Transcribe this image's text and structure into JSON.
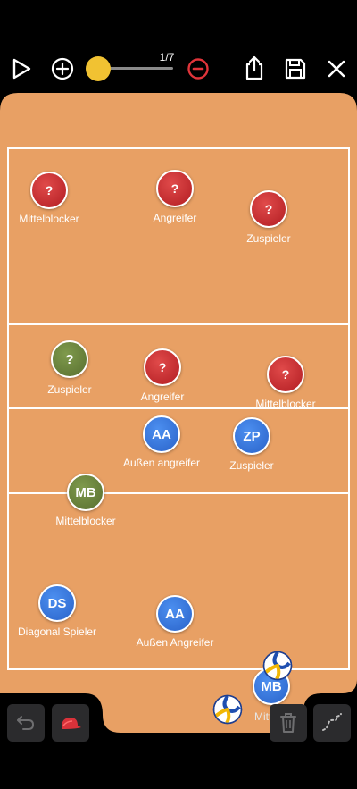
{
  "toolbar": {
    "frame_counter": "1/7",
    "slider_value": 0.17,
    "icons": {
      "play": "play-icon",
      "add": "plus-circle-icon",
      "remove": "minus-circle-icon",
      "share": "share-icon",
      "save": "floppy-disk-icon",
      "close": "close-icon"
    },
    "accent_yellow": "#f1c232",
    "remove_red": "#e0343a"
  },
  "court": {
    "color": "#e8a064",
    "line_color": "#ffffff"
  },
  "players": [
    {
      "badge": "?",
      "label": "Mittelblocker",
      "color": "red"
    },
    {
      "badge": "?",
      "label": "Angreifer",
      "color": "red"
    },
    {
      "badge": "?",
      "label": "Zuspieler",
      "color": "red"
    },
    {
      "badge": "?",
      "label": "Zuspieler",
      "color": "green"
    },
    {
      "badge": "?",
      "label": "Angreifer",
      "color": "red"
    },
    {
      "badge": "?",
      "label": "Mittelblocker",
      "color": "red"
    },
    {
      "badge": "AA",
      "label": "Außen angreifer",
      "color": "blue"
    },
    {
      "badge": "ZP",
      "label": "Zuspieler",
      "color": "blue"
    },
    {
      "badge": "MB",
      "label": "Mittelblocker",
      "color": "green"
    },
    {
      "badge": "DS",
      "label": "Diagonal Spieler",
      "color": "blue"
    },
    {
      "badge": "AA",
      "label": "Außen Angreifer",
      "color": "blue"
    },
    {
      "badge": "MB",
      "label": "Mitt",
      "color": "blue"
    }
  ],
  "bottom_bar": {
    "icons": {
      "undo": "undo-icon",
      "cap": "cap-icon",
      "trash": "trash-icon",
      "path": "dotted-path-icon"
    }
  }
}
